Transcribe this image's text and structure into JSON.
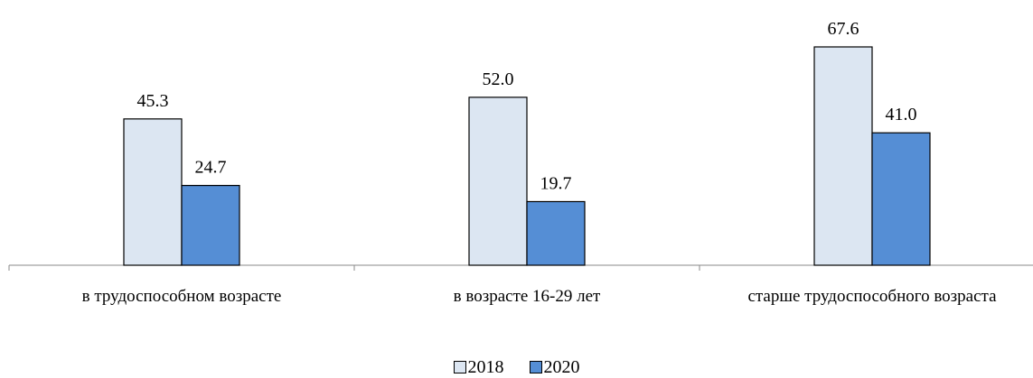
{
  "chart_data": {
    "type": "bar",
    "categories": [
      "в трудоспособном возрасте",
      "в возрасте 16-29 лет",
      "старше трудоспособного возраста"
    ],
    "series": [
      {
        "name": "2018",
        "color": "#dce6f2",
        "values": [
          45.3,
          52.0,
          67.6
        ],
        "value_labels": [
          "45.3",
          "52.0",
          "67.6"
        ]
      },
      {
        "name": "2020",
        "color": "#558ed5",
        "values": [
          24.7,
          19.7,
          41.0
        ],
        "value_labels": [
          "24.7",
          "19.7",
          "41.0"
        ]
      }
    ]
  }
}
